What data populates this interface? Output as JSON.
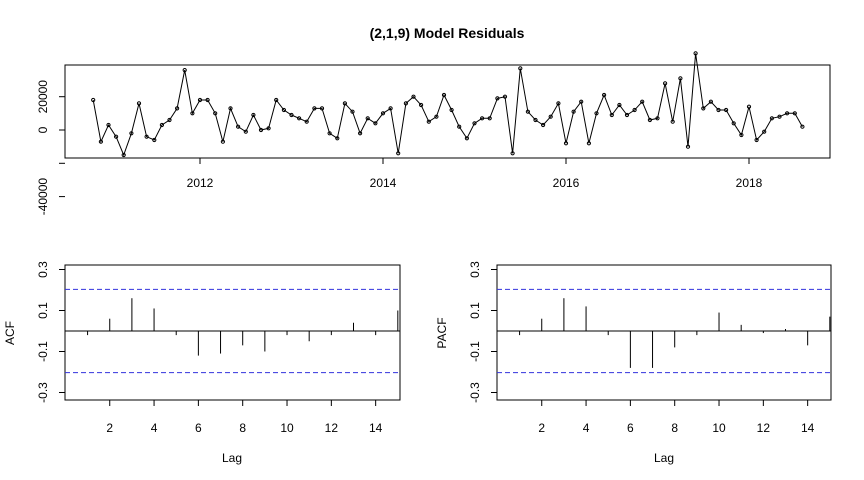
{
  "chart_data": [
    {
      "type": "line",
      "title": "(2,1,9) Model Residuals",
      "xlabel": "",
      "ylabel": "",
      "x_start": "2010-11",
      "x_step_months": 1,
      "x_ticks": [
        "2012",
        "2014",
        "2016",
        "2018"
      ],
      "y_ticks": [
        "-40000",
        "0",
        "20000"
      ],
      "ylim": [
        -55000,
        40000
      ],
      "series": [
        {
          "values": [
            18000,
            -7000,
            3000,
            -4000,
            -15000,
            -2000,
            16000,
            -4000,
            -6000,
            3000,
            6000,
            13000,
            36000,
            10000,
            18000,
            18000,
            10000,
            -7000,
            13000,
            2000,
            -1000,
            9000,
            0,
            1000,
            18000,
            12000,
            9000,
            7000,
            5000,
            13000,
            13000,
            -2000,
            -5000,
            16000,
            11000,
            -2000,
            7000,
            4000,
            10000,
            13000,
            -14000,
            16000,
            20000,
            15000,
            5000,
            8000,
            21000,
            12000,
            2000,
            -5000,
            4000,
            7000,
            7000,
            19000,
            20000,
            -14000,
            37000,
            11000,
            6000,
            3000,
            8000,
            16000,
            -8000,
            11000,
            17000,
            -8000,
            10000,
            21000,
            9000,
            15000,
            9000,
            12000,
            17000,
            6000,
            7000,
            28000,
            5000,
            31000,
            -10000,
            46000,
            13000,
            17000,
            12000,
            12000,
            4000,
            -3000,
            14000,
            -6000,
            -1000,
            7000,
            8000,
            10000,
            10000,
            2000
          ]
        }
      ]
    },
    {
      "type": "bar",
      "title": "",
      "xlabel": "Lag",
      "ylabel": "ACF",
      "categories": [
        1,
        2,
        3,
        4,
        5,
        6,
        7,
        8,
        9,
        10,
        11,
        12,
        13,
        14,
        15
      ],
      "x_ticks": [
        "2",
        "4",
        "6",
        "8",
        "10",
        "12",
        "14"
      ],
      "y_ticks": [
        "-0.3",
        "-0.1",
        "0.1",
        "0.3"
      ],
      "values": [
        -0.02,
        0.06,
        0.16,
        0.11,
        -0.02,
        -0.12,
        -0.11,
        -0.07,
        -0.1,
        -0.02,
        -0.05,
        -0.02,
        0.04,
        -0.02,
        0.1
      ],
      "ci": [
        0.203,
        -0.203
      ],
      "ylim": [
        -0.35,
        0.33
      ]
    },
    {
      "type": "bar",
      "title": "",
      "xlabel": "Lag",
      "ylabel": "PACF",
      "categories": [
        1,
        2,
        3,
        4,
        5,
        6,
        7,
        8,
        9,
        10,
        11,
        12,
        13,
        14,
        15
      ],
      "x_ticks": [
        "2",
        "4",
        "6",
        "8",
        "10",
        "12",
        "14"
      ],
      "y_ticks": [
        "-0.3",
        "-0.1",
        "0.1",
        "0.3"
      ],
      "values": [
        -0.02,
        0.06,
        0.16,
        0.12,
        -0.02,
        -0.18,
        -0.18,
        -0.08,
        -0.02,
        0.09,
        0.03,
        -0.01,
        0.01,
        -0.07,
        0.07
      ],
      "ci": [
        0.203,
        -0.203
      ],
      "ylim": [
        -0.35,
        0.33
      ]
    }
  ],
  "colors": {
    "line": "#000000",
    "ci_line": "#3333dd",
    "axis": "#000000"
  }
}
